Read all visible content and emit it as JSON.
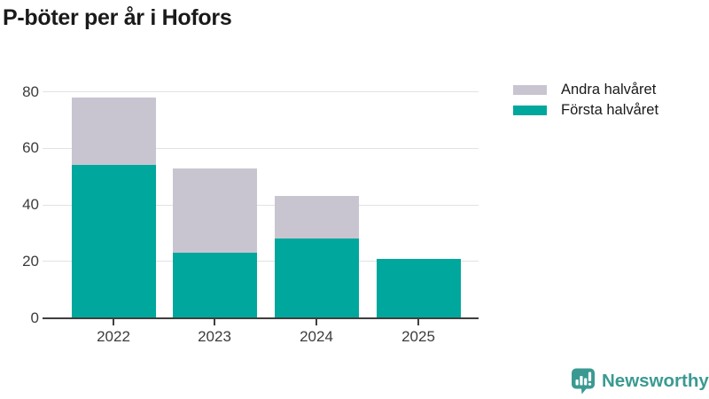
{
  "title": "P-böter per år i Hofors",
  "legend": [
    {
      "label": "Andra halvåret",
      "color": "#c8c5d1"
    },
    {
      "label": "Första halvåret",
      "color": "#00a79c"
    }
  ],
  "chart_data": {
    "type": "bar",
    "stacked": true,
    "title": "P-böter per år i Hofors",
    "categories": [
      "2022",
      "2023",
      "2024",
      "2025"
    ],
    "series": [
      {
        "name": "Första halvåret",
        "color": "#00a79c",
        "values": [
          54,
          23,
          28,
          21
        ]
      },
      {
        "name": "Andra halvåret",
        "color": "#c8c5d1",
        "values": [
          24,
          30,
          15,
          0
        ]
      }
    ],
    "stack_totals": [
      78,
      53,
      43,
      21
    ],
    "xlabel": "",
    "ylabel": "",
    "ylim": [
      0,
      80
    ],
    "yticks": [
      0,
      20,
      40,
      60,
      80
    ],
    "grid": true,
    "legend_position": "top-right"
  },
  "branding": {
    "logo_text": "Newsworthy",
    "logo_color": "#3a9a92",
    "logo_icon": "bar-chart-speech-bubble-icon"
  },
  "colors": {
    "background": "#ffffff",
    "title_text": "#1a1a1a",
    "tick_label": "#3c3c3c",
    "axis": "#3f3f3f",
    "gridline": "#e2e2e2"
  }
}
